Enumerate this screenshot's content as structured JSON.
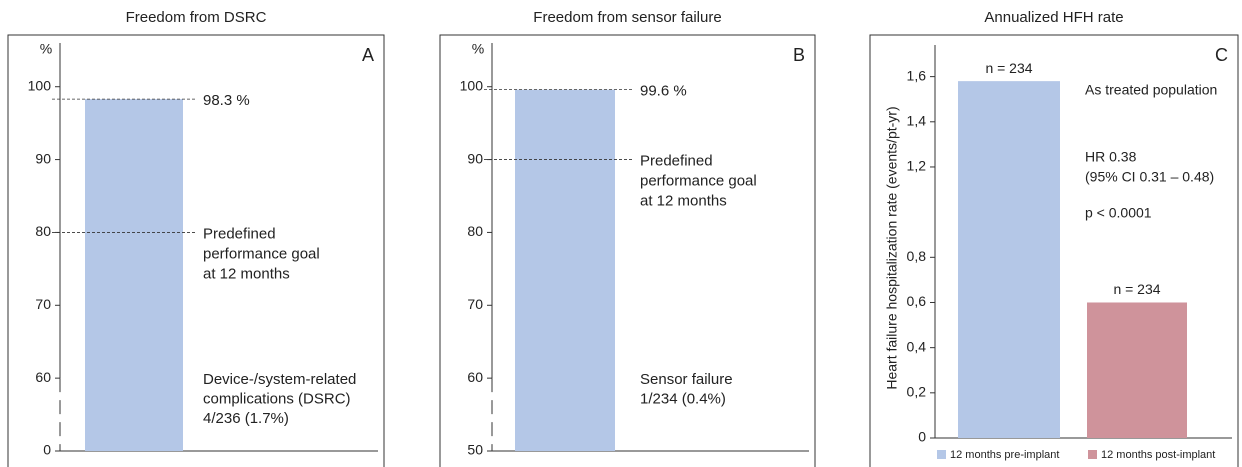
{
  "chart_data": [
    {
      "type": "bar",
      "title": "Freedom from DSRC",
      "panel": "A",
      "y_unit": "%",
      "values": [
        98.3
      ],
      "color": "#b4c7e7",
      "ylim": [
        0,
        106
      ],
      "yticks": [
        0,
        60,
        70,
        80,
        90,
        100
      ],
      "broken_axis": true,
      "reference_lines": [
        {
          "value": 98.3,
          "label": "98.3 %"
        },
        {
          "value": 80,
          "label": [
            "Predefined",
            "performance goal",
            "at 12 months"
          ]
        }
      ],
      "note": [
        "Device-/system-related",
        "complications (DSRC)",
        "4/236 (1.7%)"
      ],
      "note_color": "#1f4e9c"
    },
    {
      "type": "bar",
      "title": "Freedom from sensor failure",
      "panel": "B",
      "y_unit": "%",
      "values": [
        99.6
      ],
      "color": "#b4c7e7",
      "ylim": [
        50,
        106
      ],
      "yticks": [
        50,
        60,
        70,
        80,
        90,
        100
      ],
      "broken_axis": true,
      "reference_lines": [
        {
          "value": 99.6,
          "label": "99.6 %"
        },
        {
          "value": 90,
          "label": [
            "Predefined",
            "performance goal",
            "at 12 months"
          ]
        }
      ],
      "note": [
        "Sensor failure",
        "1/234 (0.4%)"
      ],
      "note_color": "#1f4e9c"
    },
    {
      "type": "grouped_bar",
      "title": "Annualized HFH rate",
      "panel": "C",
      "y_label": "Heart  failure hospitalization rate (events/pt-yr)",
      "series": [
        {
          "name": "12 months pre-implant",
          "color": "#b4c7e7",
          "values": [
            1.58
          ]
        },
        {
          "name": "12 months post-implant",
          "color": "#cf939b",
          "values": [
            0.6
          ]
        }
      ],
      "bar_labels": [
        "n = 234",
        "n = 234"
      ],
      "ylim": [
        0,
        1.74
      ],
      "yticks": [
        0,
        {
          "value": 0.2,
          "label": "0,2"
        },
        {
          "value": 0.4,
          "label": "0,4"
        },
        {
          "value": 0.6,
          "label": "0,6"
        },
        {
          "value": 0.8,
          "label": "0,8"
        },
        {
          "value": 1.2,
          "label": "1,2"
        },
        {
          "value": 1.4,
          "label": "1,4"
        },
        {
          "value": 1.6,
          "label": "1,6"
        }
      ],
      "subgroup": "As treated population",
      "subgroup_color": "#1f4e9c",
      "stats": [
        "HR 0.38",
        "(95% CI 0.31 – 0.48)",
        "p < 0.0001"
      ],
      "legend": "bottom"
    }
  ]
}
